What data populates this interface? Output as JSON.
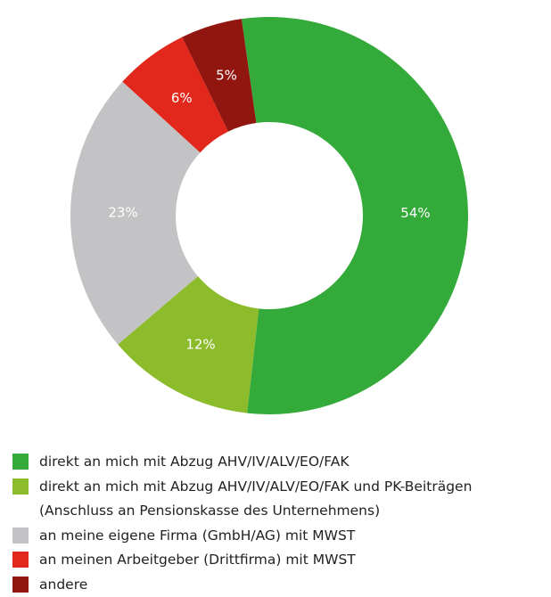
{
  "chart_data": {
    "type": "donut",
    "categories": [
      "direkt an mich mit Abzug AHV/IV/ALV/EO/FAK",
      "direkt an mich mit Abzug AHV/IV/ALV/EO/FAK und PK-Beiträgen (Anschluss an Pensionskasse des Unternehmens)",
      "an meine eigene Firma (GmbH/AG) mit MWST",
      "an meinen Arbeitgeber (Drittfirma) mit MWST",
      "andere"
    ],
    "values": [
      54,
      12,
      23,
      6,
      5
    ],
    "value_labels": [
      "54%",
      "12%",
      "23%",
      "6%",
      "5%"
    ],
    "colors": [
      "#33aa3a",
      "#8cbb2b",
      "#c3c3c5",
      "#e2281c",
      "#921610"
    ],
    "legend": "bottom-left"
  }
}
